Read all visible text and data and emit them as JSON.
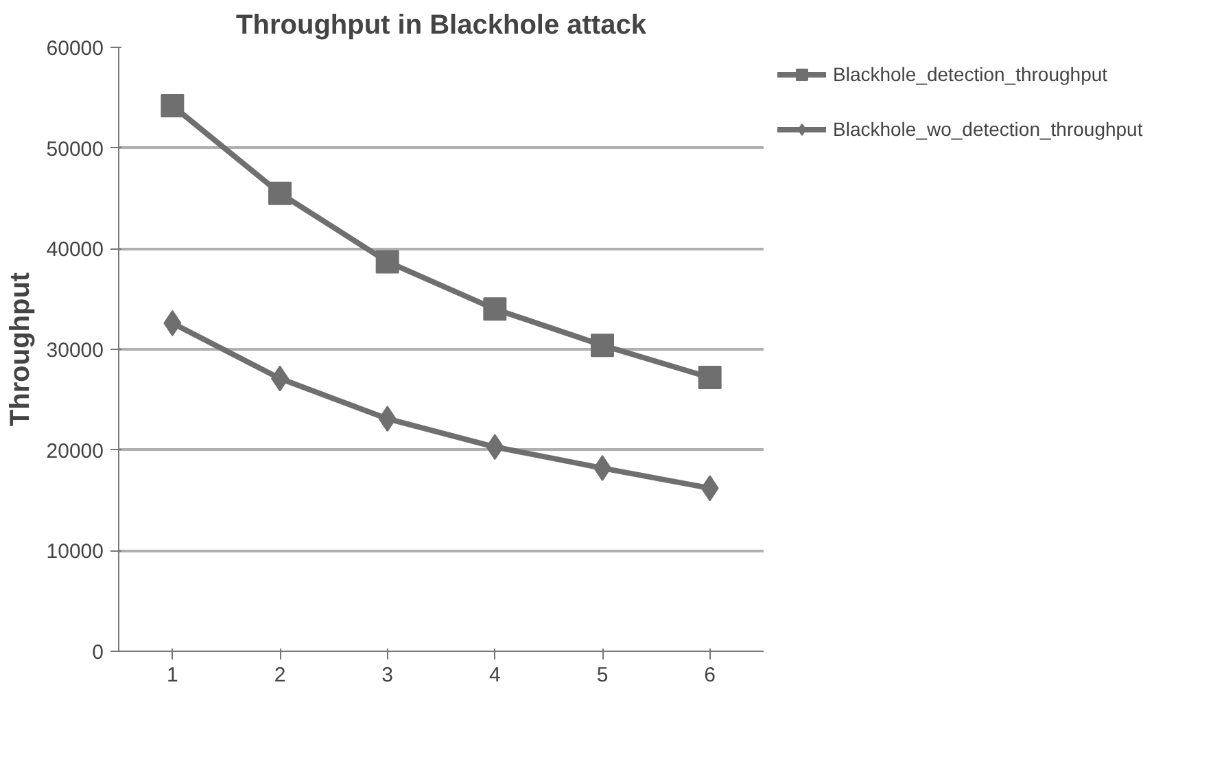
{
  "chart_data": {
    "type": "line",
    "title": "Throughput in Blackhole attack",
    "ylabel": "Throughput",
    "categories": [
      "1",
      "2",
      "3",
      "4",
      "5",
      "6"
    ],
    "series": [
      {
        "name": "Blackhole_detection_throughput",
        "color": "#6f6f6f",
        "marker": "square",
        "values": [
          54200,
          45500,
          38700,
          34000,
          30400,
          27200
        ]
      },
      {
        "name": "Blackhole_wo_detection_throughput",
        "color": "#6f6f6f",
        "marker": "diamond",
        "values": [
          32600,
          27100,
          23100,
          20300,
          18200,
          16200
        ]
      }
    ],
    "ylim": [
      0,
      60000
    ],
    "yticks": [
      0,
      10000,
      20000,
      30000,
      40000,
      50000,
      60000
    ],
    "grid": "y",
    "legend": "right",
    "line_style": "solid"
  }
}
